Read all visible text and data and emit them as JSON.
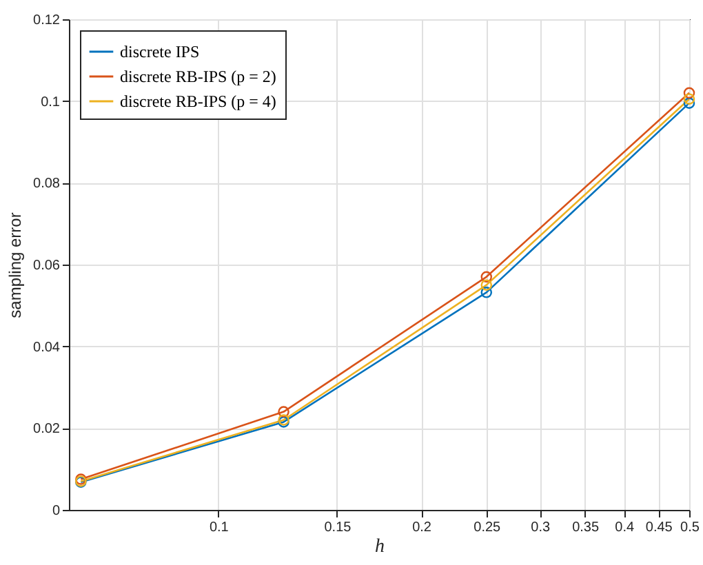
{
  "chart_data": {
    "type": "line",
    "xlabel": "h",
    "ylabel": "sampling error",
    "x": [
      0.0625,
      0.125,
      0.25,
      0.5
    ],
    "series": [
      {
        "name": "discrete IPS",
        "color": "#0072bd",
        "values": [
          0.0068,
          0.0215,
          0.0532,
          0.0995
        ]
      },
      {
        "name": "discrete RB-IPS (p = 2)",
        "color": "#d95319",
        "values": [
          0.0075,
          0.024,
          0.057,
          0.102
        ]
      },
      {
        "name": "discrete RB-IPS (p = 4)",
        "color": "#edb120",
        "values": [
          0.007,
          0.022,
          0.055,
          0.1005
        ]
      }
    ],
    "log": "x",
    "xlim": [
      0.06,
      0.5
    ],
    "xticks": [
      0.1,
      0.15,
      0.2,
      0.25,
      0.3,
      0.35,
      0.4,
      0.45,
      0.5
    ],
    "ylim": [
      0,
      0.12
    ],
    "yticks": [
      0,
      0.02,
      0.04,
      0.06,
      0.08,
      0.1,
      0.12
    ],
    "grid": true,
    "legend": "top left",
    "marker": "circle",
    "line_style": "solid"
  }
}
